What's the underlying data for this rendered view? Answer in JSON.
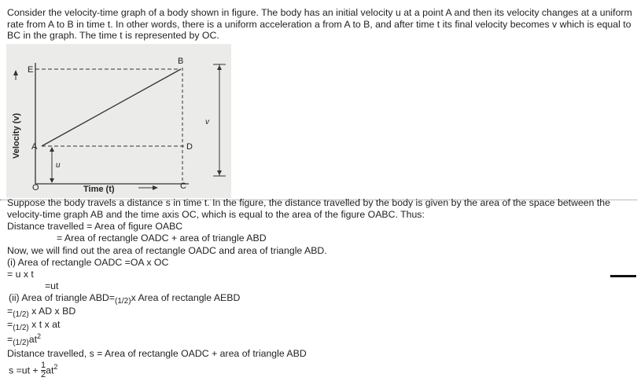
{
  "intro": "Consider the velocity-time graph of a body shown in figure. The body has an initial velocity u at a point A and then its velocity changes at a uniform rate from A to B in time t. In other words, there is a uniform acceleration a from A to B, and after time t its final velocity becomes v which is equal to BC in the graph. The time t is represented by OC.",
  "graph": {
    "y_axis_label": "Velocity (v)",
    "x_axis_label": "Time (t)",
    "point_labels": {
      "E": "E",
      "B": "B",
      "A": "A",
      "D": "D",
      "O": "O",
      "C": "C",
      "u": "u",
      "v": "v"
    }
  },
  "body_text": {
    "line1": "Suppose the body travels a distance s in time t. In the figure, the distance travelled by the body is given by the area of the space between the",
    "line2": "velocity-time graph AB and the time axis OC, which is equal to the area of the figure OABC. Thus:",
    "line3": "Distance travelled = Area of figure OABC",
    "line4": "= Area of rectangle OADC + area of triangle ABD",
    "line5": "Now, we will find out the area of rectangle OADC and area of triangle ABD.",
    "line6": "(i) Area of rectangle OADC =OA x OC",
    "line7": "= u x t",
    "line8": "=ut",
    "line9_a": "(ii) Area of triangle ABD=",
    "line9_b": "(1/2)",
    "line9_c": "x Area of rectangle AEBD",
    "line10_a": "=",
    "line10_b": "(1/2)",
    "line10_c": " x AD x BD",
    "line11_a": "=",
    "line11_b": "(1/2)",
    "line11_c": " x t x at",
    "line12_a": "=",
    "line12_b": "(1/2)",
    "line12_c": "at",
    "line12_sup": "2",
    "line13": "Distance travelled, s = Area of rectangle OADC + area of triangle ABD",
    "final_a": "s =ut +",
    "final_num": "1",
    "final_den": "2",
    "final_b": "at",
    "final_sup": "2"
  }
}
